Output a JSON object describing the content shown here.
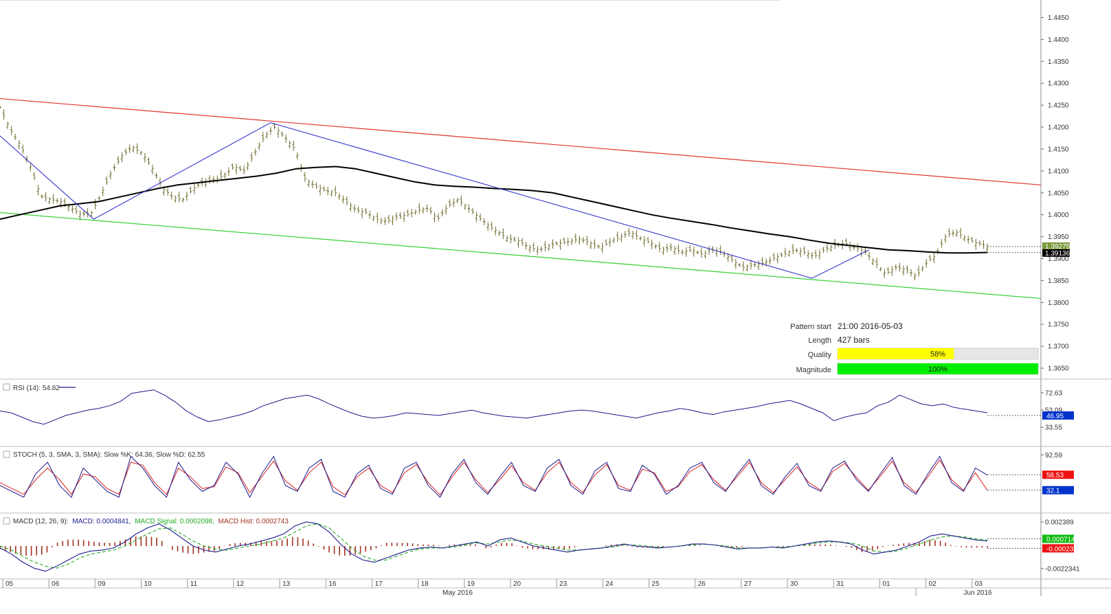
{
  "chart_data": {
    "type": "line",
    "instrument_note": "",
    "main": {
      "price_ticks": [
        "1.4450",
        "1.4400",
        "1.4350",
        "1.4300",
        "1.4250",
        "1.4200",
        "1.4150",
        "1.4100",
        "1.4050",
        "1.4000",
        "1.3950",
        "1.3900",
        "1.3850",
        "1.3800",
        "1.3750",
        "1.3700",
        "1.3650"
      ],
      "ylim": [
        1.3625,
        1.449
      ],
      "last_price": "1.39275",
      "ma_value": "1.39136",
      "price_series": [
        1.4245,
        1.4195,
        1.4158,
        1.411,
        1.4042,
        1.4035,
        1.403,
        1.4015,
        1.4,
        1.4005,
        1.405,
        1.41,
        1.4135,
        1.4155,
        1.414,
        1.4105,
        1.406,
        1.404,
        1.4035,
        1.406,
        1.4075,
        1.408,
        1.409,
        1.411,
        1.41,
        1.414,
        1.418,
        1.42,
        1.4175,
        1.415,
        1.408,
        1.4065,
        1.4055,
        1.405,
        1.403,
        1.401,
        1.4005,
        1.399,
        1.3985,
        1.3995,
        1.4,
        1.401,
        1.4015,
        1.399,
        1.402,
        1.4035,
        1.4015,
        1.3995,
        1.3975,
        1.396,
        1.3945,
        1.394,
        1.3925,
        1.392,
        1.393,
        1.3935,
        1.394,
        1.3945,
        1.3935,
        1.3925,
        1.394,
        1.395,
        1.396,
        1.3945,
        1.3935,
        1.392,
        1.3925,
        1.3915,
        1.392,
        1.391,
        1.392,
        1.3915,
        1.3895,
        1.388,
        1.3885,
        1.389,
        1.39,
        1.391,
        1.392,
        1.3915,
        1.3905,
        1.392,
        1.393,
        1.3935,
        1.3925,
        1.3915,
        1.389,
        1.3865,
        1.388,
        1.3875,
        1.386,
        1.389,
        1.391,
        1.3955,
        1.396,
        1.3945,
        1.3935,
        1.3928
      ],
      "ma_series": [
        1.399,
        1.4,
        1.401,
        1.402,
        1.4025,
        1.403,
        1.404,
        1.405,
        1.406,
        1.4068,
        1.4073,
        1.4078,
        1.4083,
        1.4088,
        1.4095,
        1.4105,
        1.4108,
        1.411,
        1.4105,
        1.4095,
        1.4085,
        1.4075,
        1.4068,
        1.4065,
        1.4063,
        1.406,
        1.4058,
        1.4055,
        1.405,
        1.404,
        1.403,
        1.402,
        1.401,
        1.4,
        1.3992,
        1.3985,
        1.3978,
        1.397,
        1.3963,
        1.3956,
        1.395,
        1.3942,
        1.3935,
        1.393,
        1.3925,
        1.392,
        1.3918,
        1.3915,
        1.3913,
        1.3913,
        1.3914
      ],
      "channel_upper": [
        1.4265,
        1.4068
      ],
      "channel_lower": [
        1.4005,
        1.3809
      ],
      "zigzag": [
        [
          0,
          1.418
        ],
        [
          0.09,
          1.399
        ],
        [
          0.26,
          1.421
        ],
        [
          0.78,
          1.3855
        ],
        [
          0.835,
          1.392
        ]
      ]
    },
    "x_ticks": [
      "05",
      "06",
      "09",
      "10",
      "11",
      "12",
      "13",
      "16",
      "17",
      "18",
      "19",
      "20",
      "23",
      "24",
      "25",
      "26",
      "27",
      "30",
      "31",
      "01",
      "02",
      "03"
    ],
    "x_months": [
      "May 2016",
      "Jun 2016"
    ],
    "pattern_info": {
      "pattern_start_label": "Pattern start",
      "pattern_start_value": "21:00 2016-05-03",
      "length_label": "Length",
      "length_value": "427 bars",
      "quality_label": "Quality",
      "quality_pct": 58,
      "quality_text": "58%",
      "magnitude_label": "Magnitude",
      "magnitude_pct": 100,
      "magnitude_text": "100%"
    },
    "rsi": {
      "title": "RSI (14): 54.82",
      "ticks": [
        "72.63",
        "53.09",
        "33.55"
      ],
      "ylim": [
        15,
        85
      ],
      "value_badge": "46.95",
      "series": [
        52,
        50,
        45,
        40,
        37,
        42,
        47,
        50,
        53,
        55,
        58,
        63,
        72,
        74,
        76,
        70,
        62,
        52,
        45,
        40,
        42,
        45,
        48,
        52,
        58,
        62,
        66,
        68,
        70,
        66,
        60,
        55,
        50,
        46,
        44,
        45,
        47,
        50,
        49,
        48,
        47,
        49,
        51,
        53,
        50,
        48,
        46,
        45,
        44,
        46,
        48,
        50,
        52,
        53,
        52,
        50,
        48,
        46,
        44,
        47,
        50,
        52,
        55,
        53,
        50,
        48,
        51,
        53,
        55,
        57,
        60,
        62,
        64,
        60,
        55,
        50,
        41,
        45,
        48,
        50,
        58,
        62,
        70,
        65,
        60,
        58,
        60,
        56,
        54,
        52,
        50
      ]
    },
    "stoch": {
      "title": "STOCH (5, 3, SMA, 3, SMA): Slow %K: 64.36, Slow %D: 62.55",
      "ticks": [
        "92.59"
      ],
      "ylim": [
        0,
        100
      ],
      "badge_k": "58.53",
      "badge_d": "32.1",
      "k_series": [
        40,
        30,
        20,
        60,
        80,
        40,
        20,
        70,
        50,
        30,
        20,
        90,
        70,
        40,
        20,
        80,
        50,
        30,
        40,
        80,
        60,
        20,
        60,
        90,
        40,
        30,
        70,
        85,
        30,
        20,
        60,
        75,
        35,
        25,
        70,
        80,
        40,
        20,
        60,
        85,
        45,
        25,
        55,
        80,
        40,
        30,
        70,
        85,
        40,
        25,
        65,
        80,
        35,
        30,
        75,
        60,
        25,
        40,
        70,
        80,
        45,
        30,
        60,
        85,
        40,
        25,
        55,
        78,
        40,
        30,
        70,
        82,
        50,
        30,
        60,
        88,
        40,
        25,
        60,
        90,
        45,
        30,
        70,
        58
      ],
      "d_series": [
        45,
        35,
        25,
        50,
        70,
        50,
        25,
        60,
        55,
        35,
        25,
        80,
        75,
        45,
        25,
        70,
        55,
        35,
        38,
        72,
        62,
        28,
        55,
        82,
        48,
        32,
        62,
        80,
        38,
        24,
        55,
        70,
        40,
        28,
        62,
        76,
        45,
        24,
        55,
        80,
        50,
        28,
        50,
        74,
        45,
        32,
        62,
        80,
        45,
        28,
        58,
        76,
        40,
        32,
        68,
        62,
        30,
        38,
        64,
        76,
        50,
        32,
        56,
        80,
        45,
        28,
        50,
        72,
        45,
        32,
        64,
        78,
        54,
        32,
        56,
        82,
        45,
        28,
        55,
        84,
        50,
        32,
        62,
        32
      ]
    },
    "macd": {
      "title_name": "MACD (12, 26, 9):",
      "macd_text": "MACD: 0.0004841,",
      "signal_text": "MACD Signal: 0.0002098,",
      "hist_text": "MACD Hist: 0.0002743",
      "ticks": [
        "0.002389",
        "-0.0022341"
      ],
      "ylim": [
        -0.003,
        0.003
      ],
      "badge_pos": "0.0007149",
      "badge_neg": "-0.0002313",
      "macd_series": [
        -0.0002,
        -0.0008,
        -0.0016,
        -0.0022,
        -0.0025,
        -0.002,
        -0.0014,
        -0.0008,
        -0.0005,
        -0.0004,
        -0.0002,
        0.0004,
        0.0012,
        0.0018,
        0.0022,
        0.0016,
        0.0008,
        0.0,
        -0.0004,
        -0.0006,
        -0.0003,
        0.0,
        0.0002,
        0.0005,
        0.0008,
        0.0012,
        0.002,
        0.0024,
        0.0022,
        0.0014,
        0.0002,
        -0.0008,
        -0.0014,
        -0.0016,
        -0.0012,
        -0.0008,
        -0.0004,
        -0.0002,
        -0.0001,
        -0.0002,
        0.0,
        0.0002,
        0.0004,
        0.0,
        0.0006,
        0.0008,
        0.0004,
        0.0,
        -0.0002,
        -0.0004,
        -0.0006,
        -0.0004,
        -0.0003,
        -0.0002,
        0.0,
        0.0002,
        0.0,
        -0.0001,
        -0.0002,
        -0.0001,
        0.0,
        0.0002,
        0.0002,
        0.0001,
        -0.0001,
        -0.0003,
        -0.0002,
        -0.0002,
        -0.0001,
        -0.0002,
        0.0,
        0.0002,
        0.0004,
        0.0005,
        0.0004,
        0.0002,
        -0.0004,
        -0.0008,
        -0.0006,
        -0.0004,
        0.0,
        0.0004,
        0.001,
        0.0012,
        0.001,
        0.0008,
        0.0006,
        0.0005
      ],
      "signal_series": [
        0.0,
        -0.0004,
        -0.001,
        -0.0016,
        -0.002,
        -0.0022,
        -0.0018,
        -0.0012,
        -0.0008,
        -0.0006,
        -0.0004,
        0.0,
        0.0006,
        0.0012,
        0.0017,
        0.0018,
        0.0012,
        0.0005,
        0.0,
        -0.0003,
        -0.0004,
        -0.0002,
        0.0,
        0.0002,
        0.0005,
        0.0008,
        0.0014,
        0.002,
        0.0022,
        0.0018,
        0.0008,
        -0.0002,
        -0.001,
        -0.0014,
        -0.0014,
        -0.001,
        -0.0006,
        -0.0003,
        -0.0002,
        -0.0002,
        -0.0001,
        0.0001,
        0.0003,
        0.0002,
        0.0004,
        0.0006,
        0.0005,
        0.0002,
        0.0,
        -0.0002,
        -0.0004,
        -0.0004,
        -0.0003,
        -0.0002,
        -0.0001,
        0.0001,
        0.0001,
        0.0,
        -0.0001,
        -0.0001,
        0.0,
        0.0001,
        0.0002,
        0.0001,
        0.0,
        -0.0002,
        -0.0002,
        -0.0002,
        -0.0001,
        -0.0001,
        0.0,
        0.0001,
        0.0003,
        0.0004,
        0.0004,
        0.0003,
        0.0,
        -0.0005,
        -0.0006,
        -0.0005,
        -0.0002,
        0.0002,
        0.0006,
        0.0009,
        0.001,
        0.0009,
        0.0007,
        0.0006
      ]
    },
    "colors": {
      "upper_line": "#e0352b",
      "lower_line": "#2fd12f",
      "zigzag": "#3333cc",
      "ma": "#000000",
      "bars": "#6e6a2a",
      "indicator_line": "#1a1a8c",
      "stoch_d": "#d62020",
      "macd_signal": "#22aa22",
      "hist": "#a33020",
      "price_badge": "#7a9a3a",
      "quality_fill": "#ffff00",
      "magnitude_fill": "#00ee00",
      "badge_blue": "#0033cc",
      "badge_red": "#ee1111",
      "badge_green": "#11bb11"
    }
  }
}
